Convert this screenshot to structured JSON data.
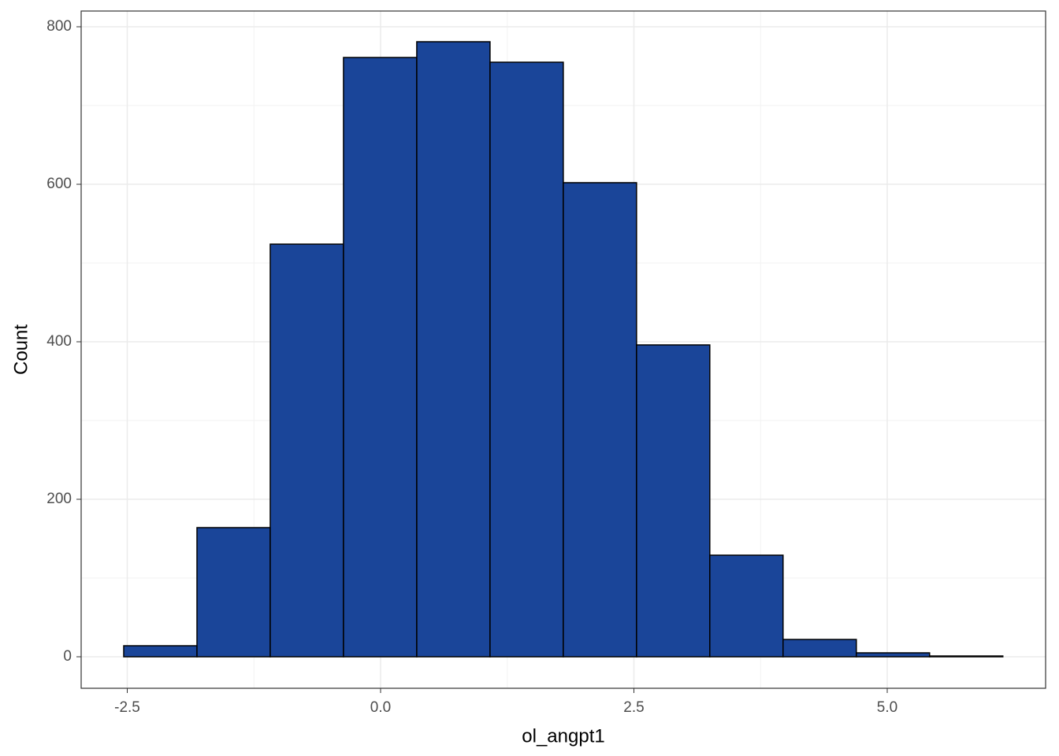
{
  "chart_data": {
    "type": "histogram",
    "x_label": "ol_angpt1",
    "y_label": "Count",
    "bins": [
      -2.535,
      -1.812,
      -1.089,
      -0.366,
      0.357,
      1.08,
      1.803,
      2.526,
      3.249,
      3.972,
      4.695,
      5.418,
      6.141
    ],
    "values": [
      14,
      164,
      524,
      761,
      781,
      755,
      602,
      396,
      129,
      22,
      5,
      1
    ],
    "color": "#1a4599",
    "edge_color": "#000000",
    "xlim": [
      -2.955,
      6.563
    ],
    "ylim": [
      -40,
      820
    ],
    "xticks": [
      {
        "value": -2.5,
        "label": "-2.5"
      },
      {
        "value": 0,
        "label": "0.0"
      },
      {
        "value": 2.5,
        "label": "2.5"
      },
      {
        "value": 5,
        "label": "5.0"
      }
    ],
    "yticks": [
      0,
      200,
      400,
      600,
      800
    ],
    "grid": true
  }
}
